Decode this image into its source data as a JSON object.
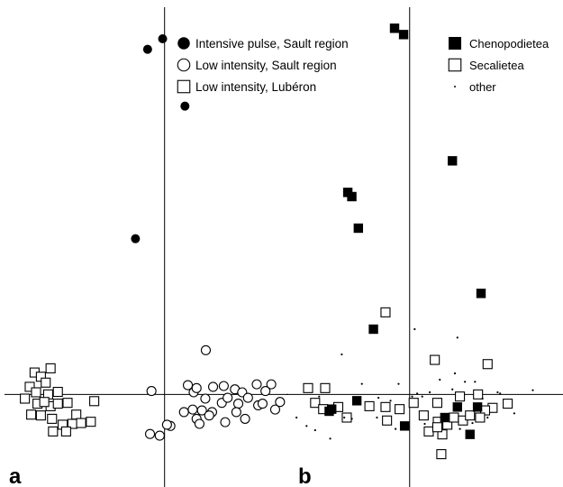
{
  "chart_data": [
    {
      "type": "scatter",
      "panel_label": "a",
      "title": "",
      "xlabel": "",
      "ylabel": "",
      "axes": "crosshair at origin, no ticks",
      "xlim": [
        -3.3,
        2.55
      ],
      "ylim": [
        -2.2,
        9.2
      ],
      "grid": false,
      "legend_position": "top-right",
      "series": [
        {
          "name": "Intensive pulse, Sault region",
          "marker": "filled-circle",
          "color": "#000000",
          "points": [
            [
              -0.35,
              8.2
            ],
            [
              -0.04,
              8.45
            ],
            [
              0.42,
              6.85
            ],
            [
              -0.6,
              3.7
            ]
          ]
        },
        {
          "name": "Low intensity, Sault region",
          "marker": "open-circle",
          "color": "#000000",
          "points": [
            [
              -0.27,
              0.08
            ],
            [
              0.85,
              1.05
            ],
            [
              0.48,
              0.22
            ],
            [
              0.6,
              0.05
            ],
            [
              0.66,
              0.15
            ],
            [
              1.0,
              0.18
            ],
            [
              1.22,
              0.2
            ],
            [
              1.45,
              0.12
            ],
            [
              1.6,
              0.05
            ],
            [
              1.9,
              0.24
            ],
            [
              2.2,
              0.24
            ],
            [
              2.08,
              0.08
            ],
            [
              0.84,
              -0.1
            ],
            [
              1.18,
              -0.2
            ],
            [
              1.3,
              -0.08
            ],
            [
              1.52,
              -0.22
            ],
            [
              1.72,
              -0.08
            ],
            [
              1.93,
              -0.26
            ],
            [
              2.02,
              -0.22
            ],
            [
              2.28,
              -0.36
            ],
            [
              2.38,
              -0.18
            ],
            [
              0.4,
              -0.42
            ],
            [
              0.58,
              -0.36
            ],
            [
              0.77,
              -0.38
            ],
            [
              0.98,
              -0.42
            ],
            [
              1.48,
              -0.42
            ],
            [
              1.66,
              -0.58
            ],
            [
              0.66,
              -0.58
            ],
            [
              0.72,
              -0.7
            ],
            [
              0.12,
              -0.75
            ],
            [
              -0.3,
              -0.94
            ],
            [
              -0.1,
              -0.98
            ],
            [
              0.05,
              -0.72
            ],
            [
              0.92,
              -0.5
            ],
            [
              1.25,
              -0.66
            ]
          ]
        },
        {
          "name": "Low intensity, Lubéron",
          "marker": "open-square",
          "color": "#000000",
          "points": [
            [
              -2.68,
              0.52
            ],
            [
              -2.35,
              0.62
            ],
            [
              -2.55,
              0.42
            ],
            [
              -2.78,
              0.18
            ],
            [
              -2.45,
              0.28
            ],
            [
              -2.65,
              0.05
            ],
            [
              -2.4,
              0.0
            ],
            [
              -2.2,
              0.06
            ],
            [
              -1.45,
              -0.16
            ],
            [
              -2.88,
              -0.1
            ],
            [
              -2.62,
              -0.22
            ],
            [
              -2.35,
              -0.28
            ],
            [
              -2.2,
              -0.22
            ],
            [
              -2.0,
              -0.2
            ],
            [
              -1.82,
              -0.48
            ],
            [
              -2.75,
              -0.48
            ],
            [
              -2.55,
              -0.5
            ],
            [
              -2.32,
              -0.58
            ],
            [
              -2.1,
              -0.72
            ],
            [
              -1.9,
              -0.7
            ],
            [
              -2.3,
              -0.88
            ],
            [
              -2.03,
              -0.88
            ],
            [
              -1.72,
              -0.68
            ],
            [
              -1.52,
              -0.65
            ],
            [
              -2.48,
              -0.18
            ]
          ]
        }
      ]
    },
    {
      "type": "scatter",
      "panel_label": "b",
      "title": "",
      "xlabel": "",
      "ylabel": "",
      "axes": "crosshair at origin, no ticks",
      "xlim": [
        -2.45,
        3.05
      ],
      "ylim": [
        -2.2,
        9.2
      ],
      "grid": false,
      "legend_position": "top-right",
      "series": [
        {
          "name": "Chenopodietea",
          "marker": "filled-square",
          "color": "#000000",
          "points": [
            [
              -0.3,
              8.7
            ],
            [
              -0.12,
              8.55
            ],
            [
              0.85,
              5.55
            ],
            [
              -1.23,
              4.8
            ],
            [
              -1.15,
              4.7
            ],
            [
              -1.02,
              3.95
            ],
            [
              1.42,
              2.4
            ],
            [
              -0.72,
              1.55
            ],
            [
              -1.55,
              -0.35
            ],
            [
              -1.05,
              -0.15
            ],
            [
              -0.1,
              -0.75
            ],
            [
              0.95,
              -0.3
            ],
            [
              1.35,
              -0.3
            ],
            [
              1.2,
              -0.95
            ],
            [
              0.7,
              -0.55
            ],
            [
              -1.6,
              -0.4
            ]
          ]
        },
        {
          "name": "Secalietea",
          "marker": "open-square",
          "color": "#000000",
          "points": [
            [
              -0.48,
              1.95
            ],
            [
              0.5,
              0.82
            ],
            [
              1.55,
              0.72
            ],
            [
              -2.02,
              0.15
            ],
            [
              -1.68,
              0.15
            ],
            [
              -1.88,
              -0.2
            ],
            [
              -1.72,
              -0.35
            ],
            [
              -1.42,
              -0.3
            ],
            [
              -1.25,
              -0.55
            ],
            [
              -0.8,
              -0.28
            ],
            [
              -0.48,
              -0.3
            ],
            [
              -0.2,
              -0.35
            ],
            [
              0.08,
              -0.2
            ],
            [
              -0.45,
              -0.62
            ],
            [
              0.55,
              -0.2
            ],
            [
              0.28,
              -0.5
            ],
            [
              0.38,
              -0.88
            ],
            [
              0.56,
              -0.65
            ],
            [
              0.75,
              -0.72
            ],
            [
              0.88,
              -0.55
            ],
            [
              1.06,
              -0.62
            ],
            [
              1.2,
              -0.5
            ],
            [
              0.63,
              -1.42
            ],
            [
              1.0,
              -0.05
            ],
            [
              1.36,
              0.0
            ],
            [
              1.65,
              -0.32
            ],
            [
              1.95,
              -0.22
            ],
            [
              0.65,
              -0.95
            ],
            [
              1.5,
              -0.38
            ],
            [
              1.4,
              -0.55
            ],
            [
              0.55,
              -0.78
            ]
          ]
        },
        {
          "name": "other",
          "marker": "dot",
          "color": "#000000",
          "points": [
            [
              0.1,
              1.55
            ],
            [
              0.95,
              1.35
            ],
            [
              -1.35,
              0.95
            ],
            [
              0.9,
              0.5
            ],
            [
              -0.22,
              0.25
            ],
            [
              -0.95,
              0.25
            ],
            [
              1.1,
              0.3
            ],
            [
              1.3,
              0.3
            ],
            [
              2.45,
              0.1
            ],
            [
              -1.8,
              -0.05
            ],
            [
              -0.62,
              -0.08
            ],
            [
              0.25,
              -0.05
            ],
            [
              0.05,
              -0.05
            ],
            [
              -2.25,
              -0.55
            ],
            [
              -1.88,
              -0.85
            ],
            [
              -1.58,
              -1.05
            ],
            [
              -1.3,
              -0.55
            ],
            [
              -0.28,
              -0.82
            ],
            [
              0.4,
              0.05
            ],
            [
              1.8,
              0.02
            ],
            [
              0.6,
              0.35
            ],
            [
              1.55,
              -0.55
            ],
            [
              1.25,
              -0.68
            ],
            [
              0.3,
              -0.7
            ],
            [
              0.85,
              0.12
            ],
            [
              -1.15,
              -0.58
            ],
            [
              -0.65,
              -0.55
            ],
            [
              1.75,
              0.05
            ],
            [
              0.15,
              0.02
            ],
            [
              1.0,
              -0.82
            ],
            [
              1.45,
              -0.1
            ],
            [
              -2.05,
              -0.75
            ],
            [
              -0.38,
              -0.15
            ],
            [
              2.08,
              -0.45
            ]
          ]
        }
      ]
    }
  ]
}
